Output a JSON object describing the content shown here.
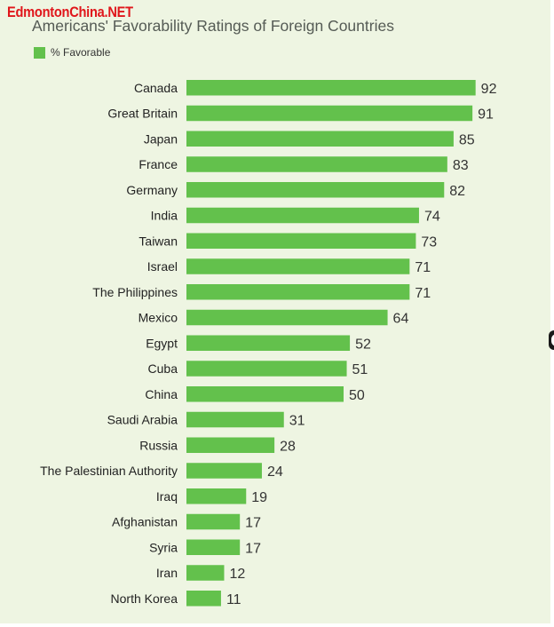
{
  "watermark": "EdmontonChina.NET",
  "chart_data": {
    "type": "bar",
    "orientation": "horizontal",
    "title": "Americans' Favorability Ratings of Foreign Countries",
    "legend": "top-left",
    "grid": false,
    "series": [
      {
        "name": "% Favorable",
        "color": "#63c14c",
        "values": [
          92,
          91,
          85,
          83,
          82,
          74,
          73,
          71,
          71,
          64,
          52,
          51,
          50,
          31,
          28,
          24,
          19,
          17,
          17,
          12,
          11
        ]
      }
    ],
    "categories": [
      "Canada",
      "Great Britain",
      "Japan",
      "France",
      "Germany",
      "India",
      "Taiwan",
      "Israel",
      "The Philippines",
      "Mexico",
      "Egypt",
      "Cuba",
      "China",
      "Saudi Arabia",
      "Russia",
      "The Palestinian Authority",
      "Iraq",
      "Afghanistan",
      "Syria",
      "Iran",
      "North Korea"
    ],
    "xlim": [
      0,
      100
    ]
  }
}
